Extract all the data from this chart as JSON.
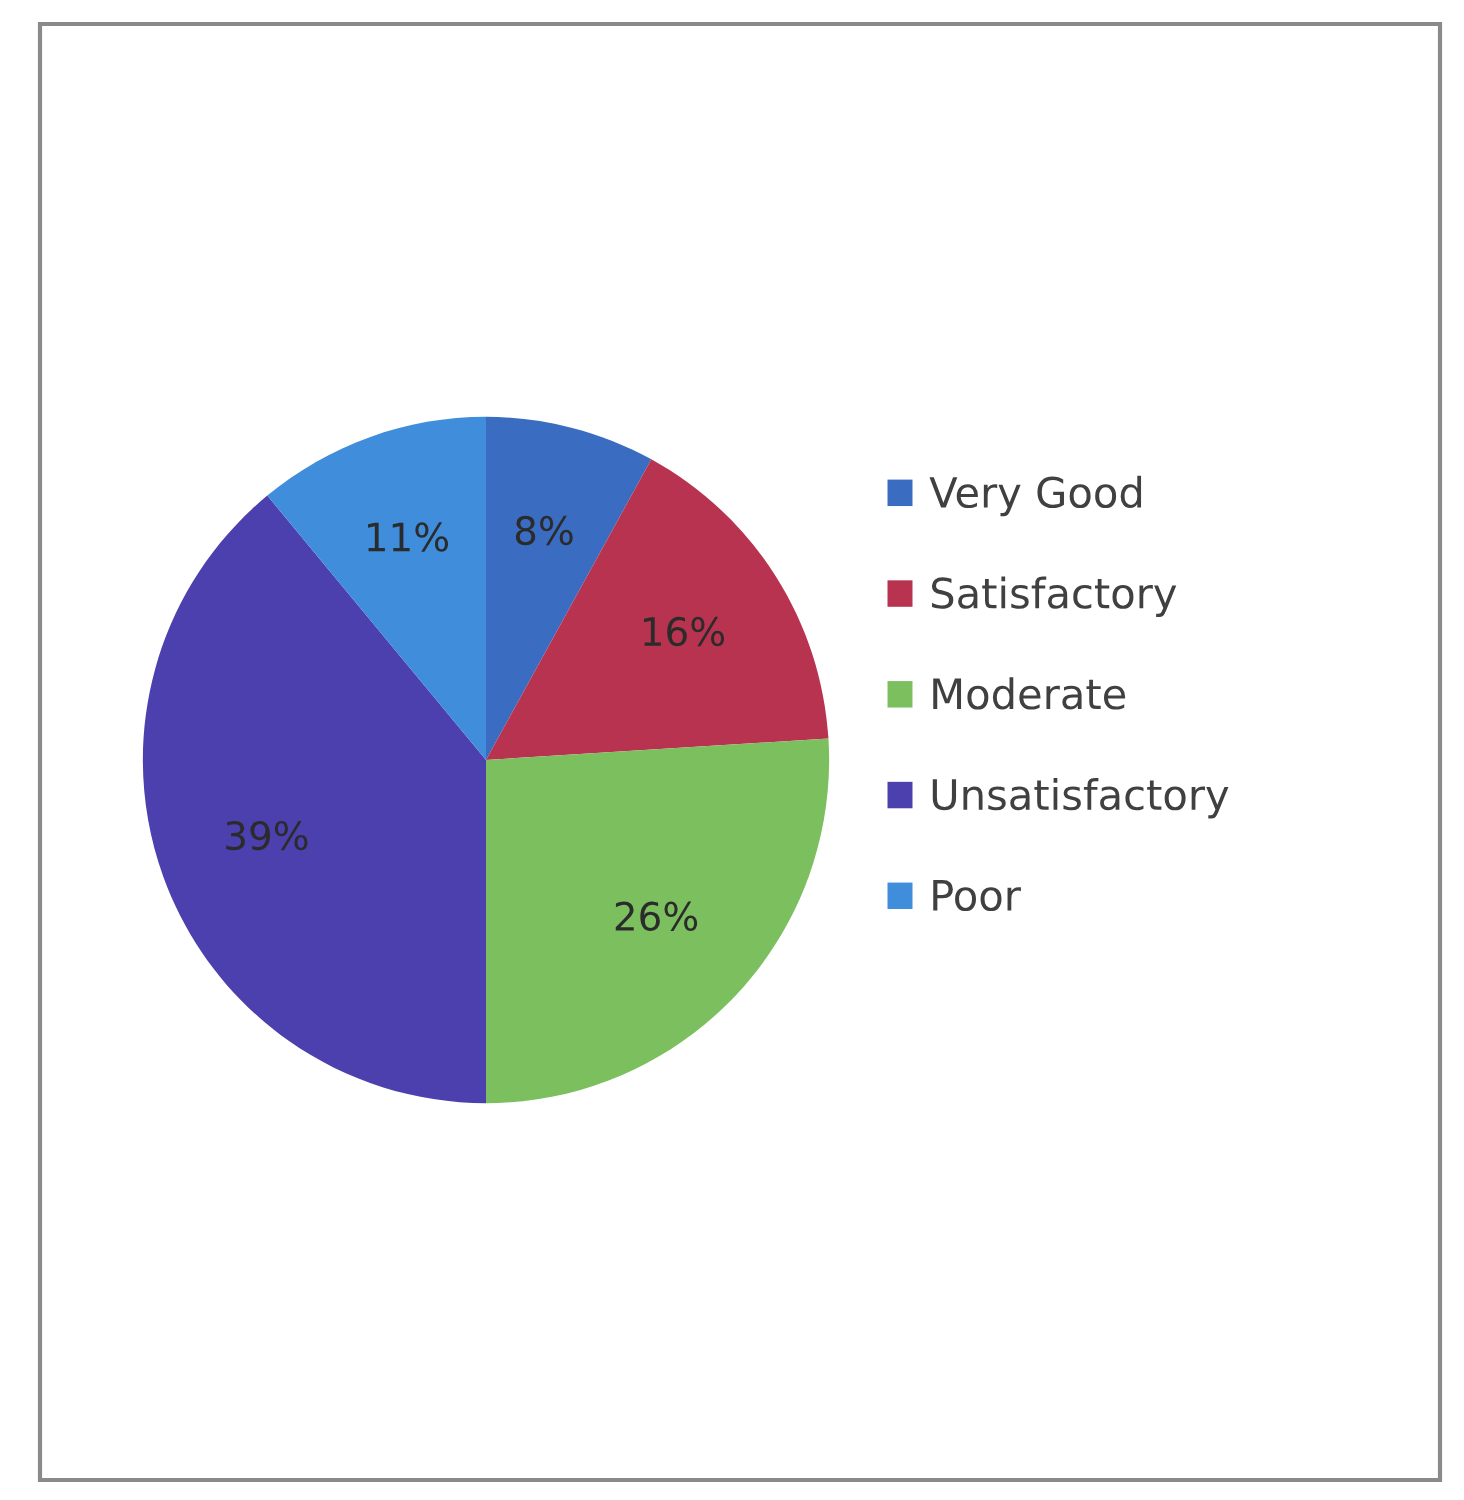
{
  "chart_data": {
    "type": "pie",
    "categories": [
      "Very Good",
      "Satisfactory",
      "Moderate",
      "Unsatisfactory",
      "Poor"
    ],
    "values": [
      8,
      16,
      26,
      39,
      11
    ],
    "colors": [
      "#3a6cc2",
      "#b83350",
      "#7cbf5f",
      "#4b40ad",
      "#3f8ddb"
    ],
    "value_labels": [
      "8%",
      "16%",
      "26%",
      "39%",
      "11%"
    ],
    "legend": "right"
  }
}
